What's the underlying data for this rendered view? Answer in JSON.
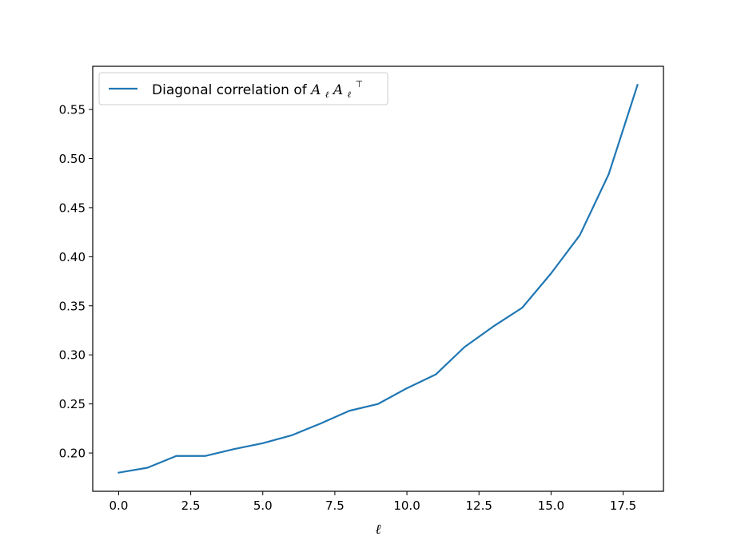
{
  "chart_data": {
    "type": "line",
    "title": "",
    "xlabel": "ℓ",
    "ylabel": "",
    "xlim": [
      -0.9,
      18.9
    ],
    "ylim": [
      0.161,
      0.594
    ],
    "xticks": [
      0.0,
      2.5,
      5.0,
      7.5,
      10.0,
      12.5,
      15.0,
      17.5
    ],
    "xtick_labels": [
      "0.0",
      "2.5",
      "5.0",
      "7.5",
      "10.0",
      "12.5",
      "15.0",
      "17.5"
    ],
    "yticks": [
      0.2,
      0.25,
      0.3,
      0.35,
      0.4,
      0.45,
      0.5,
      0.55
    ],
    "ytick_labels": [
      "0.20",
      "0.25",
      "0.30",
      "0.35",
      "0.40",
      "0.45",
      "0.50",
      "0.55"
    ],
    "grid": false,
    "legend_position": "top-left",
    "series": [
      {
        "name_text": "Diagonal correlation of ",
        "name_math": {
          "a1": "A",
          "s1": "ℓ",
          "a2": "A",
          "s2": "ℓ",
          "sup": "⊤"
        },
        "color": "#1f77b4",
        "x": [
          0,
          1,
          2,
          3,
          4,
          5,
          6,
          7,
          8,
          9,
          10,
          11,
          12,
          13,
          14,
          15,
          16,
          17,
          18
        ],
        "values": [
          0.18,
          0.185,
          0.197,
          0.197,
          0.204,
          0.21,
          0.218,
          0.23,
          0.243,
          0.25,
          0.266,
          0.28,
          0.308,
          0.329,
          0.348,
          0.383,
          0.422,
          0.484,
          0.575
        ]
      }
    ]
  }
}
